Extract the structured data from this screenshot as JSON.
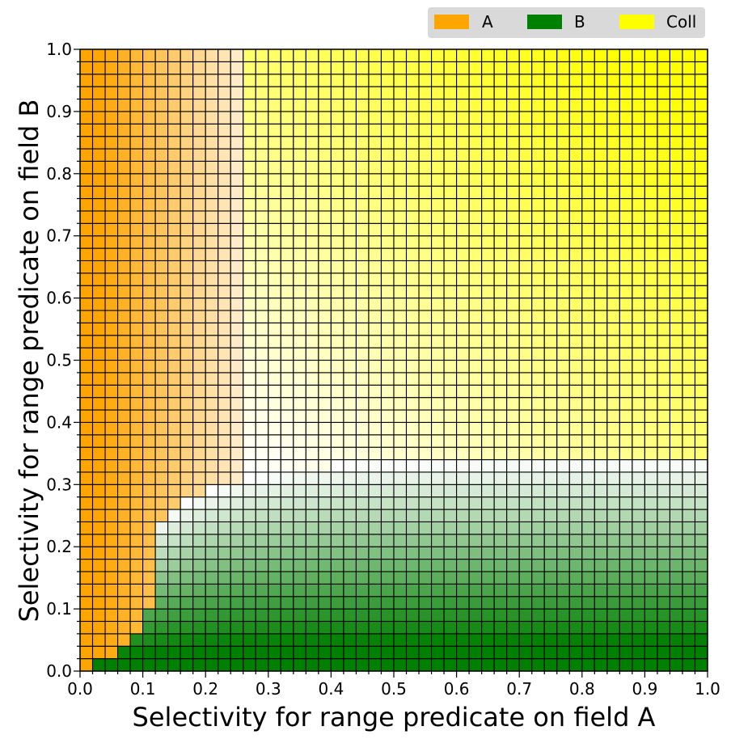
{
  "chart_data": {
    "type": "heatmap",
    "xlabel": "Selectivity for range predicate on field A",
    "ylabel": "Selectivity for range predicate on field B",
    "xlim": [
      0,
      1
    ],
    "ylim": [
      0,
      1
    ],
    "grid_size": [
      50,
      50
    ],
    "cell_size": 0.02,
    "x_ticks": [
      "0.0",
      "0.1",
      "0.2",
      "0.3",
      "0.4",
      "0.5",
      "0.6",
      "0.7",
      "0.8",
      "0.9",
      "1.0"
    ],
    "y_ticks": [
      "0.0",
      "0.1",
      "0.2",
      "0.3",
      "0.4",
      "0.5",
      "0.6",
      "0.7",
      "0.8",
      "0.9",
      "1.0"
    ],
    "legend": {
      "placement": "top-right",
      "entries": [
        {
          "label": "A",
          "color": "#FFA500"
        },
        {
          "label": "B",
          "color": "#008000"
        },
        {
          "label": "Coll",
          "color": "#FFFF00"
        }
      ]
    },
    "regions": [
      {
        "winner": "A",
        "description": "strongest near x=0, fading out by x≈0.25–0.3"
      },
      {
        "winner": "B",
        "description": "strongest near y=0, fading out by y≈0.3–0.35"
      },
      {
        "winner": "Coll",
        "description": "upper-right region, intensifying toward x=1, y=1"
      }
    ]
  }
}
